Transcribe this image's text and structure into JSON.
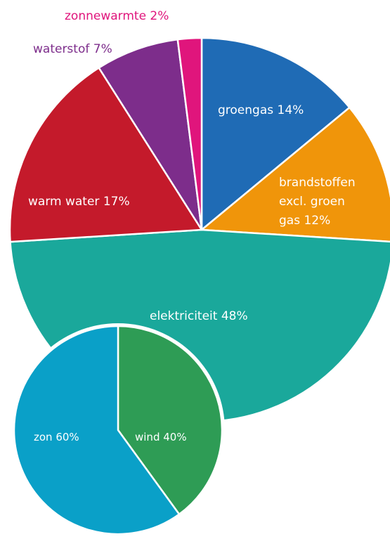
{
  "chart_data": [
    {
      "type": "pie",
      "slices": [
        {
          "label": "groengas 14%",
          "value": 14,
          "color": "#1f6bb5"
        },
        {
          "label": "brandstoffen excl. groen gas 12%",
          "value": 12,
          "color": "#f0950a"
        },
        {
          "label": "elektriciteit 48%",
          "value": 48,
          "color": "#1aa89b"
        },
        {
          "label": "warm water 17%",
          "value": 17,
          "color": "#c41a2b"
        },
        {
          "label": "waterstof 7%",
          "value": 7,
          "color": "#7d2d8b"
        },
        {
          "label": "zonnewarmte 2%",
          "value": 2,
          "color": "#e0157c"
        }
      ],
      "label_lines": {
        "groengas": "groengas 14%",
        "brandstoffen": [
          "brandstoffen",
          "excl. groen",
          "gas 12%"
        ],
        "elektriciteit": "elektriciteit 48%",
        "warm_water": "warm water 17%",
        "waterstof": "waterstof 7%",
        "zonnewarmte": "zonnewarmte 2%"
      },
      "outside_label_colors": {
        "waterstof": "#7d2d8b",
        "zonnewarmte": "#e0157c"
      }
    },
    {
      "type": "pie",
      "slices": [
        {
          "label": "wind 40%",
          "value": 40,
          "color": "#2e9c55"
        },
        {
          "label": "zon 60%",
          "value": 60,
          "color": "#0aa0c8"
        }
      ]
    }
  ]
}
